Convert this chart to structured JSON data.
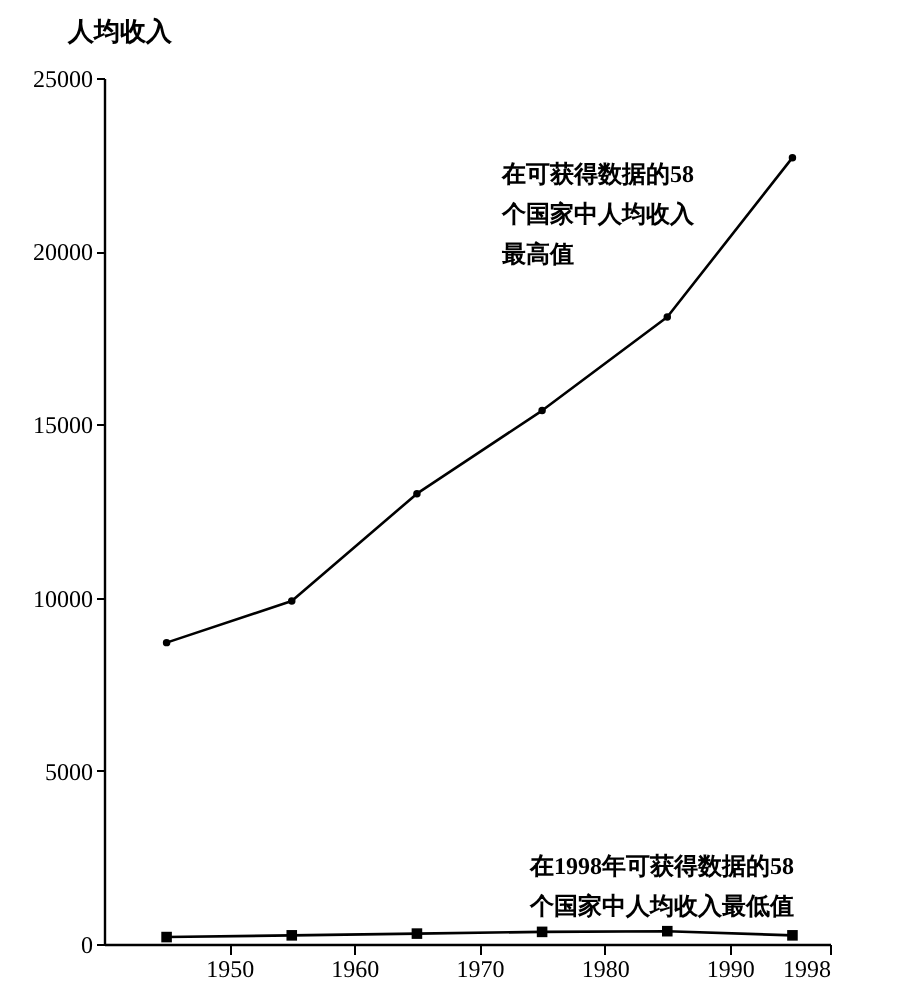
{
  "chart_data": {
    "type": "line",
    "ylabel": "人均收入",
    "x": [
      1945,
      1955,
      1965,
      1975,
      1985,
      1995
    ],
    "series": [
      {
        "color": "#000000",
        "marker": "circle",
        "values": [
          8700,
          9900,
          13000,
          15400,
          18100,
          22700
        ]
      },
      {
        "color": "#000000",
        "marker": "square",
        "values": [
          200,
          250,
          300,
          350,
          370,
          250
        ]
      }
    ],
    "xlim": [
      1940,
      1998
    ],
    "xticks": [
      1950,
      1960,
      1970,
      1980,
      1990,
      1998
    ],
    "ylim": [
      0,
      25000
    ],
    "yticks": [
      0,
      5000,
      10000,
      15000,
      20000,
      25000
    ],
    "annotations": [
      "在可获得数据的58个国家中人均收入最高值",
      "在1998年可获得数据的58个国家中人均收入最低值"
    ],
    "grid": false
  }
}
